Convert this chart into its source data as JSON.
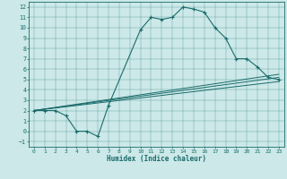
{
  "xlabel": "Humidex (Indice chaleur)",
  "xlim": [
    -0.5,
    23.5
  ],
  "ylim": [
    -1.5,
    12.5
  ],
  "xticks": [
    0,
    1,
    2,
    3,
    4,
    5,
    6,
    7,
    8,
    9,
    10,
    11,
    12,
    13,
    14,
    15,
    16,
    17,
    18,
    19,
    20,
    21,
    22,
    23
  ],
  "yticks": [
    -1,
    0,
    1,
    2,
    3,
    4,
    5,
    6,
    7,
    8,
    9,
    10,
    11,
    12
  ],
  "bg_color": "#cce8e8",
  "line_color": "#1a6b6b",
  "line1_x": [
    0,
    1,
    2,
    3,
    4,
    5,
    6,
    7,
    10,
    11,
    12,
    13,
    14,
    15,
    16,
    17,
    18,
    19,
    20,
    21,
    22,
    23
  ],
  "line1_y": [
    2,
    2,
    2,
    1.5,
    0,
    0,
    -0.5,
    2.5,
    9.8,
    11,
    10.8,
    11,
    12,
    11.8,
    11.5,
    10,
    9,
    7,
    7,
    6.2,
    5.2,
    5
  ],
  "line2_x": [
    0,
    23
  ],
  "line2_y": [
    2,
    5.2
  ],
  "line3_x": [
    0,
    23
  ],
  "line3_y": [
    2,
    4.8
  ],
  "line4_x": [
    0,
    23
  ],
  "line4_y": [
    2,
    5.5
  ],
  "figsize": [
    3.2,
    2.0
  ],
  "dpi": 100
}
